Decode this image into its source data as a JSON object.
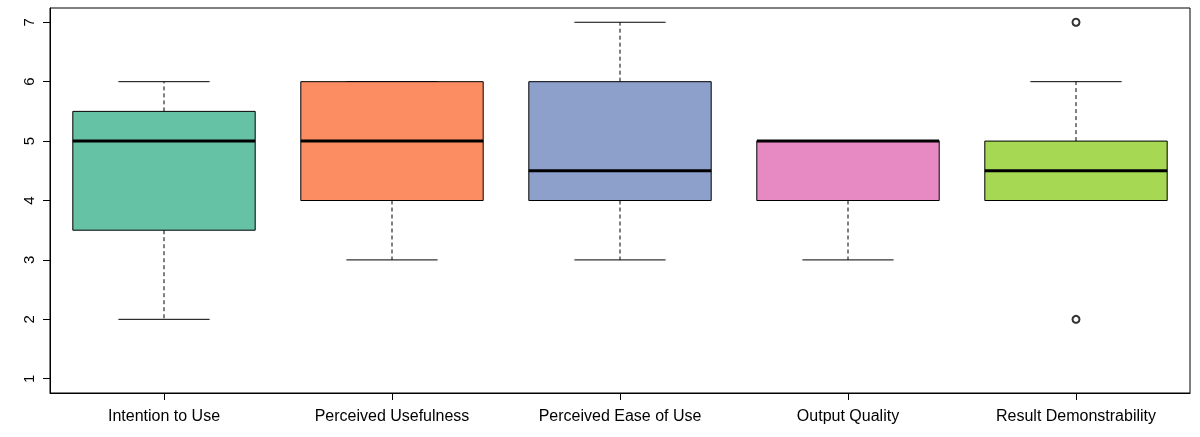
{
  "chart_data": {
    "type": "box",
    "categories": [
      "Intention to Use",
      "Perceived Usefulness",
      "Perceived Ease of Use",
      "Output Quality",
      "Result Demonstrability"
    ],
    "colors": [
      "#66c2a5",
      "#fc8d62",
      "#8da0cb",
      "#e78ac3",
      "#a6d854"
    ],
    "boxes": [
      {
        "low": 2,
        "q1": 3.5,
        "median": 5,
        "q3": 5.5,
        "high": 6
      },
      {
        "low": 3,
        "q1": 4,
        "median": 5,
        "q3": 6,
        "high": 6
      },
      {
        "low": 3,
        "q1": 4,
        "median": 4.5,
        "q3": 6,
        "high": 7
      },
      {
        "low": 3,
        "q1": 4,
        "median": 5,
        "q3": 5,
        "high": 5
      },
      {
        "low": 4,
        "q1": 4,
        "median": 4.5,
        "q3": 5,
        "high": 6,
        "outliers": [
          7,
          2
        ]
      }
    ],
    "ylim": [
      0.76,
      7.24
    ],
    "yticks": [
      1,
      2,
      3,
      4,
      5,
      6,
      7
    ]
  }
}
